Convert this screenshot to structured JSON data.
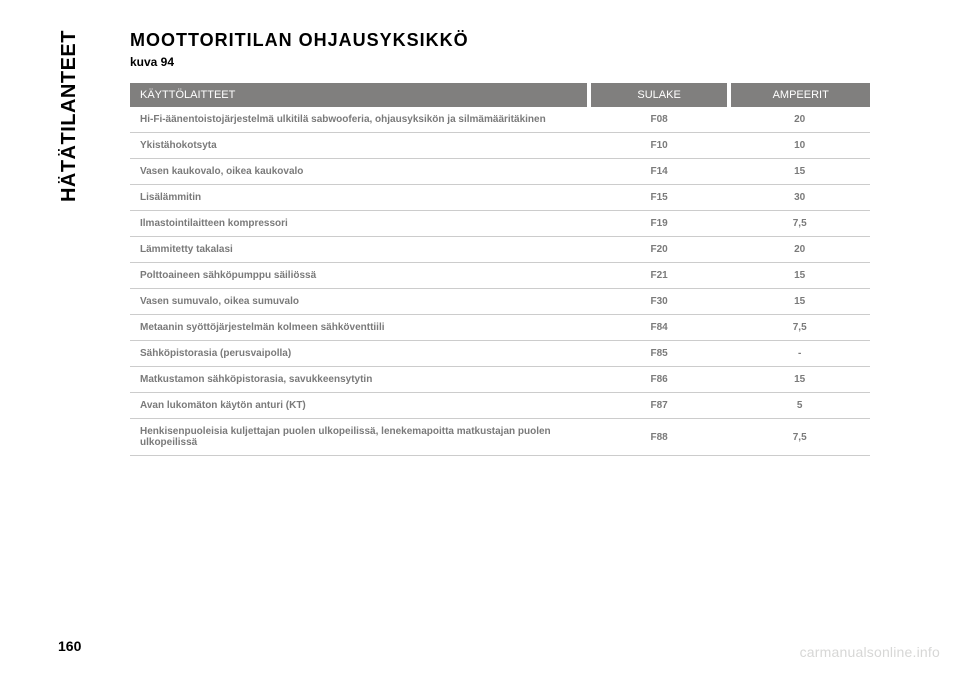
{
  "side_label": "HÄTÄTILANTEET",
  "heading": "MOOTTORITILAN OHJAUSYKSIKKÖ",
  "subheading": "kuva 94",
  "table": {
    "columns": [
      "KÄYTTÖLAITTEET",
      "SULAKE",
      "AMPEERIT"
    ],
    "rows": [
      [
        "Hi-Fi-äänentoistojärjestelmä ulkitilä sabwooferia, ohjausyksikön ja silmämääritäkinen",
        "F08",
        "20"
      ],
      [
        "Ykistähokotsyta",
        "F10",
        "10"
      ],
      [
        "Vasen kaukovalo, oikea kaukovalo",
        "F14",
        "15"
      ],
      [
        "Lisälämmitin",
        "F15",
        "30"
      ],
      [
        "Ilmastointilaitteen kompressori",
        "F19",
        "7,5"
      ],
      [
        "Lämmitetty takalasi",
        "F20",
        "20"
      ],
      [
        "Polttoaineen sähköpumppu säiliössä",
        "F21",
        "15"
      ],
      [
        "Vasen sumuvalo, oikea sumuvalo",
        "F30",
        "15"
      ],
      [
        "Metaanin syöttöjärjestelmän kolmeen sähköventtiili",
        "F84",
        "7,5"
      ],
      [
        "Sähköpistorasia (perusvaipolla)",
        "F85",
        "-"
      ],
      [
        "Matkustamon sähköpistorasia, savukkeensytytin",
        "F86",
        "15"
      ],
      [
        "Avan lukomäton käytön anturi (KT)",
        "F87",
        "5"
      ],
      [
        "Henkisenpuoleisia kuljettajan puolen ulkopeilissä, lenekemapoitta matkustajan puolen ulkopeilissä",
        "F88",
        "7,5"
      ]
    ]
  },
  "page_number": "160",
  "watermark": "carmanualsonline.info"
}
